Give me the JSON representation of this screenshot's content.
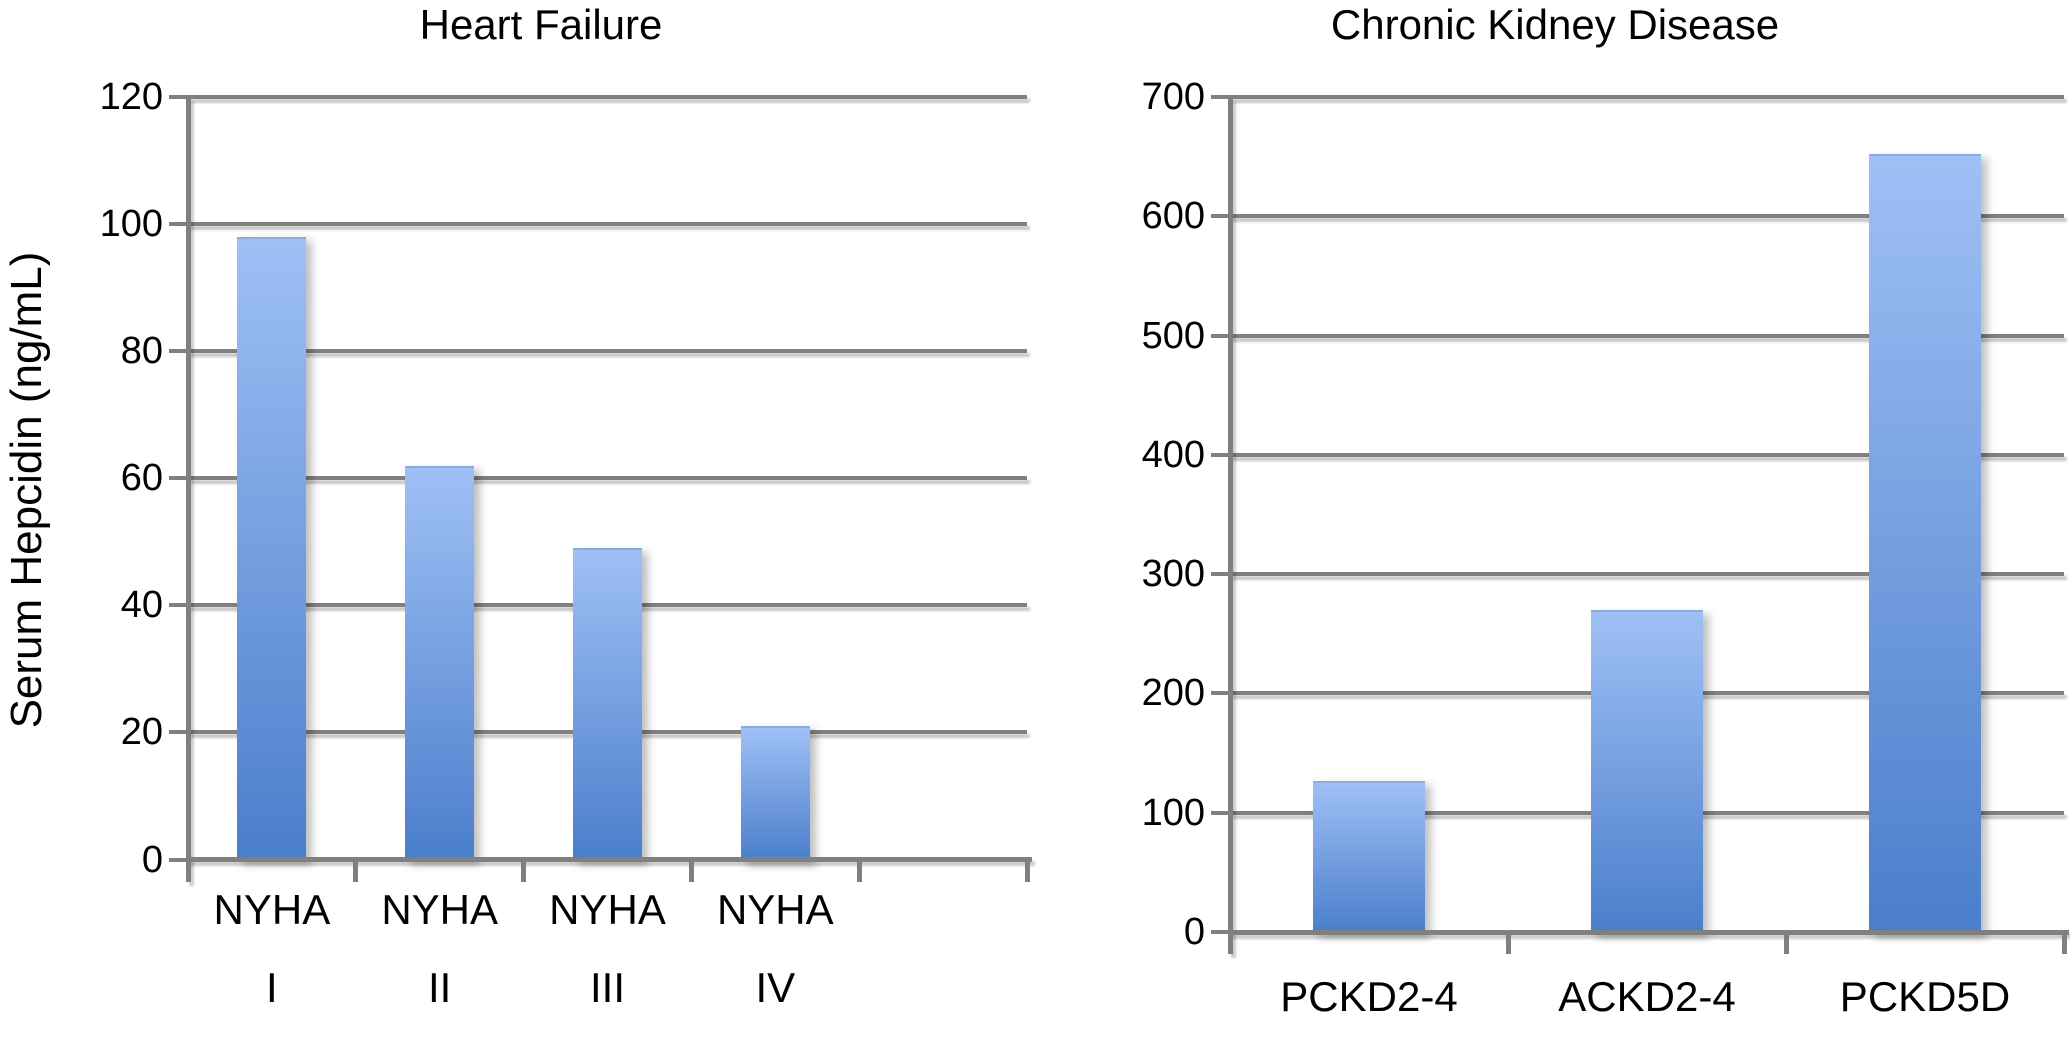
{
  "figure": {
    "background": "#FFFFFF"
  },
  "colors": {
    "bar_gradient_top": "#9FC0F5",
    "bar_gradient_bottom": "#4A7ECB",
    "grid_and_axis": "#808080",
    "text": "#000000"
  },
  "chart_data": [
    {
      "type": "bar",
      "title": "Heart Failure",
      "ylabel": "Serum Hepcidin (ng/mL)",
      "xlabel": "",
      "categories": [
        [
          "NYHA",
          "I"
        ],
        [
          "NYHA",
          "II"
        ],
        [
          "NYHA",
          "III"
        ],
        [
          "NYHA",
          "IV"
        ]
      ],
      "values": [
        98,
        62,
        49,
        21
      ],
      "ylim": [
        0,
        120
      ],
      "ytick_step": 20,
      "ytick_labels": [
        "0",
        "20",
        "40",
        "60",
        "80",
        "100",
        "120"
      ],
      "grid": "horizontal",
      "legend": "none"
    },
    {
      "type": "bar",
      "title": "Chronic Kidney Disease",
      "ylabel": "",
      "xlabel": "",
      "categories": [
        [
          "PCKD2-4"
        ],
        [
          "ACKD2-4"
        ],
        [
          "PCKD5D"
        ]
      ],
      "values": [
        127,
        270,
        652
      ],
      "ylim": [
        0,
        700
      ],
      "ytick_step": 100,
      "ytick_labels": [
        "0",
        "100",
        "200",
        "300",
        "400",
        "500",
        "600",
        "700"
      ],
      "grid": "horizontal",
      "legend": "none"
    }
  ]
}
